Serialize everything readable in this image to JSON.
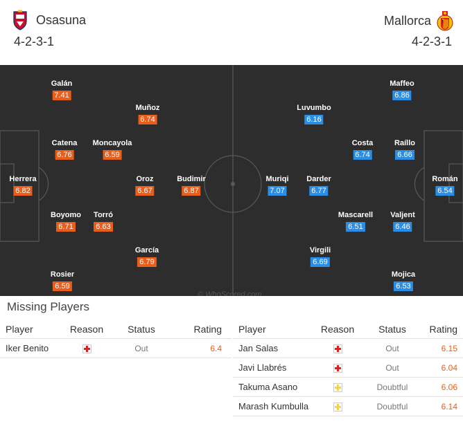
{
  "home": {
    "name": "Osasuna",
    "formation": "4-2-3-1",
    "crest_colors": [
      "#c8102e",
      "#0a2a5e"
    ],
    "players": [
      {
        "name": "Galán",
        "rating": "7.41"
      },
      {
        "name": "Muñoz",
        "rating": "6.74"
      },
      {
        "name": "Catena",
        "rating": "6.76"
      },
      {
        "name": "Moncayola",
        "rating": "6.59"
      },
      {
        "name": "Herrera",
        "rating": "6.82"
      },
      {
        "name": "Oroz",
        "rating": "6.67"
      },
      {
        "name": "Budimir",
        "rating": "6.87"
      },
      {
        "name": "Boyomo",
        "rating": "6.71"
      },
      {
        "name": "Torró",
        "rating": "6.63"
      },
      {
        "name": "García",
        "rating": "6.79"
      },
      {
        "name": "Rosier",
        "rating": "6.59"
      }
    ]
  },
  "away": {
    "name": "Mallorca",
    "formation": "4-2-3-1",
    "crest_colors": [
      "#d81e1e",
      "#f5c400"
    ],
    "players": [
      {
        "name": "Maffeo",
        "rating": "6.86"
      },
      {
        "name": "Luvumbo",
        "rating": "6.16"
      },
      {
        "name": "Costa",
        "rating": "6.74"
      },
      {
        "name": "Raíllo",
        "rating": "6.66"
      },
      {
        "name": "Muriqi",
        "rating": "7.07"
      },
      {
        "name": "Darder",
        "rating": "6.77"
      },
      {
        "name": "Román",
        "rating": "6.54"
      },
      {
        "name": "Mascarell",
        "rating": "6.51"
      },
      {
        "name": "Valjent",
        "rating": "6.46"
      },
      {
        "name": "Virgili",
        "rating": "6.69"
      },
      {
        "name": "Mojica",
        "rating": "6.53"
      }
    ]
  },
  "watermark": "© WhoScored.com",
  "colors": {
    "home_rating": "#ea5e1b",
    "away_rating": "#2b8ee6",
    "pitch": "#2d2d2d"
  },
  "missing": {
    "title": "Missing Players",
    "headers": {
      "player": "Player",
      "reason": "Reason",
      "status": "Status",
      "rating": "Rating"
    },
    "home": [
      {
        "player": "Iker Benito",
        "reason": "injury-icon",
        "status": "Out",
        "rating": "6.4"
      }
    ],
    "away": [
      {
        "player": "Jan Salas",
        "reason": "injury-icon",
        "status": "Out",
        "rating": "6.15"
      },
      {
        "player": "Javi Llabrés",
        "reason": "injury-icon",
        "status": "Out",
        "rating": "6.04"
      },
      {
        "player": "Takuma Asano",
        "reason": "doubtful-icon",
        "status": "Doubtful",
        "rating": "6.06"
      },
      {
        "player": "Marash Kumbulla",
        "reason": "doubtful-icon",
        "status": "Doubtful",
        "rating": "6.14"
      }
    ]
  }
}
